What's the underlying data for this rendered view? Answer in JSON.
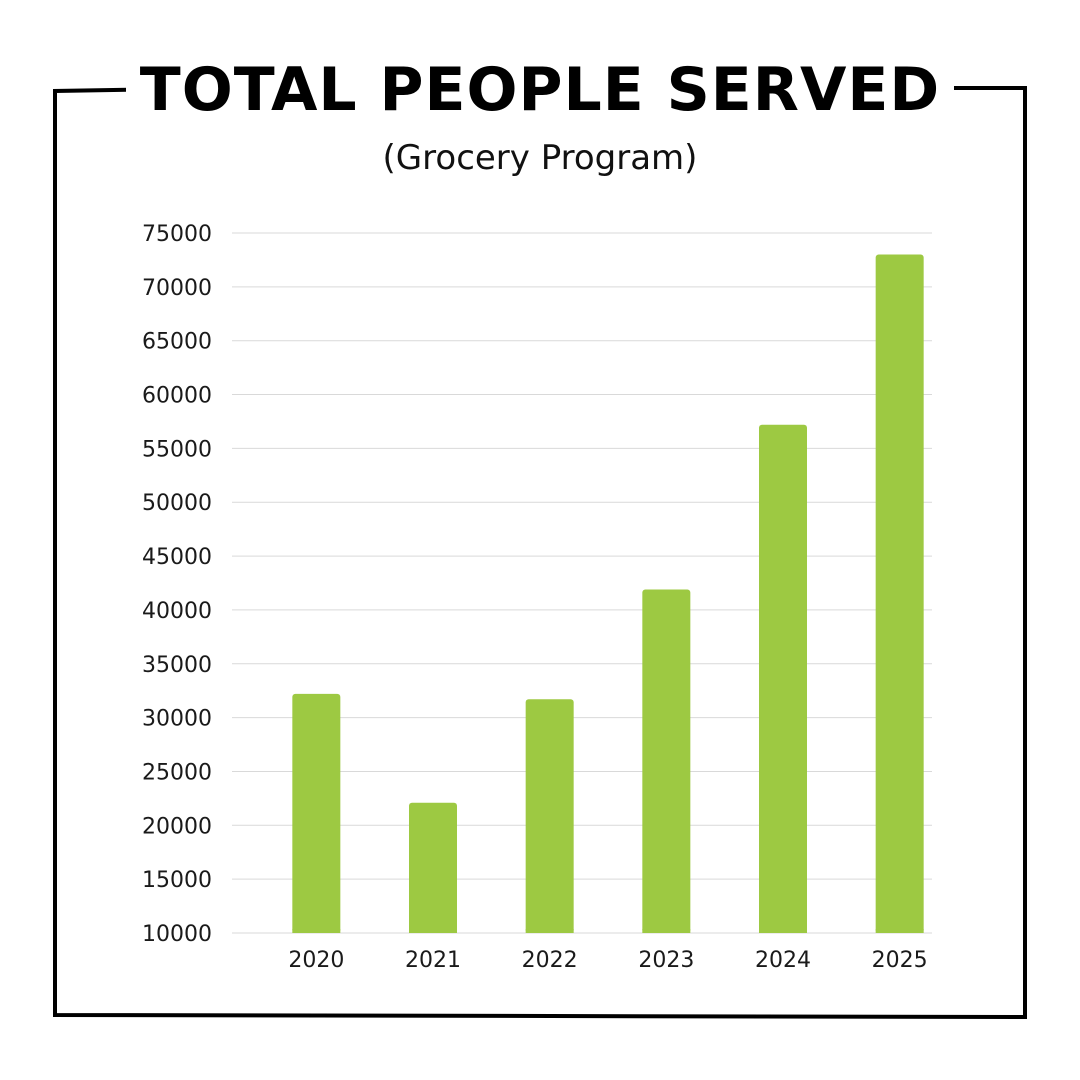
{
  "title": "TOTAL PEOPLE SERVED",
  "subtitle": "(Grocery Program)",
  "colors": {
    "bar": "#9dc942",
    "grid": "#d9d9d9",
    "frame": "#000000"
  },
  "chart_data": {
    "type": "bar",
    "title": "TOTAL PEOPLE SERVED",
    "subtitle": "(Grocery Program)",
    "categories": [
      "2020",
      "2021",
      "2022",
      "2023",
      "2024",
      "2025"
    ],
    "values": [
      32200,
      22100,
      31700,
      41900,
      57200,
      73000
    ],
    "ylim": [
      10000,
      75000
    ],
    "yticks": [
      "75000",
      "70000",
      "65000",
      "60000",
      "55000",
      "50000",
      "45000",
      "40000",
      "35000",
      "30000",
      "25000",
      "20000",
      "15000",
      "10000"
    ],
    "xlabel": "",
    "ylabel": "",
    "grid": true,
    "legend": "none"
  }
}
